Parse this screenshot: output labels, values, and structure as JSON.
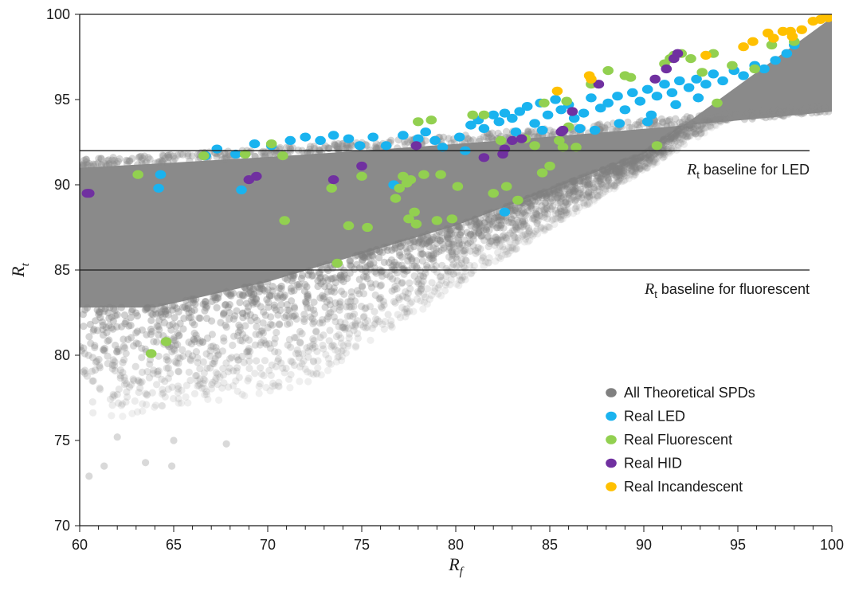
{
  "chart_data": {
    "type": "scatter",
    "title": "",
    "xlabel": {
      "main": "R",
      "sub": "f"
    },
    "ylabel": {
      "main": "R",
      "sub": "t"
    },
    "xlim": [
      60,
      100
    ],
    "ylim": [
      70,
      100
    ],
    "xticks": [
      60,
      65,
      70,
      75,
      80,
      85,
      90,
      95,
      100
    ],
    "yticks": [
      70,
      75,
      80,
      85,
      90,
      95,
      100
    ],
    "grid": false,
    "legend_position": "bottom-right",
    "reference_lines": [
      {
        "y": 92,
        "label_var": "R",
        "label_sub": "t",
        "label_text": " baseline for LED"
      },
      {
        "y": 85,
        "label_var": "R",
        "label_sub": "t",
        "label_text": " baseline for fluorescent"
      }
    ],
    "series": [
      {
        "name": "All Theoretical SPDs",
        "color": "#808080",
        "cloud": true,
        "points": [
          [
            60.5,
            72.9
          ],
          [
            61.3,
            73.5
          ],
          [
            63.5,
            73.7
          ],
          [
            64.9,
            73.5
          ],
          [
            67.8,
            74.8
          ],
          [
            62.0,
            75.2
          ],
          [
            65.0,
            75.0
          ]
        ]
      },
      {
        "name": "Real LED",
        "color": "#1ab3ef",
        "points": [
          [
            64.2,
            89.8
          ],
          [
            64.3,
            90.6
          ],
          [
            66.7,
            91.7
          ],
          [
            67.3,
            92.1
          ],
          [
            68.3,
            91.8
          ],
          [
            68.6,
            89.7
          ],
          [
            69.3,
            92.4
          ],
          [
            70.2,
            92.3
          ],
          [
            71.2,
            92.6
          ],
          [
            72.0,
            92.8
          ],
          [
            72.8,
            92.6
          ],
          [
            73.5,
            92.9
          ],
          [
            74.3,
            92.7
          ],
          [
            74.9,
            92.3
          ],
          [
            75.6,
            92.8
          ],
          [
            76.3,
            92.3
          ],
          [
            76.7,
            90.0
          ],
          [
            77.2,
            92.9
          ],
          [
            78.0,
            92.7
          ],
          [
            78.4,
            93.1
          ],
          [
            78.9,
            92.6
          ],
          [
            79.3,
            92.2
          ],
          [
            80.2,
            92.8
          ],
          [
            80.8,
            93.5
          ],
          [
            81.2,
            93.8
          ],
          [
            81.5,
            93.3
          ],
          [
            82.0,
            94.1
          ],
          [
            82.3,
            93.7
          ],
          [
            82.6,
            94.2
          ],
          [
            82.6,
            88.4
          ],
          [
            83.0,
            93.9
          ],
          [
            83.4,
            94.3
          ],
          [
            83.8,
            94.6
          ],
          [
            84.2,
            93.6
          ],
          [
            84.5,
            94.8
          ],
          [
            84.9,
            94.1
          ],
          [
            85.3,
            95.0
          ],
          [
            85.6,
            94.4
          ],
          [
            86.0,
            94.7
          ],
          [
            86.3,
            93.9
          ],
          [
            86.8,
            94.2
          ],
          [
            87.2,
            95.1
          ],
          [
            87.7,
            94.5
          ],
          [
            88.1,
            94.8
          ],
          [
            88.6,
            95.2
          ],
          [
            89.0,
            94.4
          ],
          [
            89.4,
            95.4
          ],
          [
            89.8,
            94.9
          ],
          [
            90.2,
            95.6
          ],
          [
            90.7,
            95.2
          ],
          [
            91.1,
            95.9
          ],
          [
            91.5,
            95.4
          ],
          [
            91.9,
            96.1
          ],
          [
            92.4,
            95.7
          ],
          [
            92.8,
            96.2
          ],
          [
            93.3,
            95.9
          ],
          [
            93.7,
            96.5
          ],
          [
            94.2,
            96.1
          ],
          [
            94.8,
            96.7
          ],
          [
            95.3,
            96.4
          ],
          [
            95.9,
            97.0
          ],
          [
            96.4,
            96.8
          ],
          [
            97.0,
            97.3
          ],
          [
            97.6,
            97.7
          ],
          [
            98.0,
            98.2
          ],
          [
            88.7,
            93.6
          ],
          [
            90.2,
            93.7
          ],
          [
            86.6,
            93.3
          ],
          [
            84.6,
            93.2
          ],
          [
            83.2,
            93.1
          ],
          [
            87.4,
            93.2
          ],
          [
            80.5,
            92.0
          ],
          [
            90.4,
            94.1
          ],
          [
            91.7,
            94.7
          ],
          [
            92.9,
            95.1
          ]
        ]
      },
      {
        "name": "Real Fluorescent",
        "color": "#92d050",
        "points": [
          [
            63.1,
            90.6
          ],
          [
            63.8,
            80.1
          ],
          [
            64.6,
            80.8
          ],
          [
            66.6,
            91.7
          ],
          [
            68.8,
            91.8
          ],
          [
            70.2,
            92.4
          ],
          [
            70.8,
            91.7
          ],
          [
            70.9,
            87.9
          ],
          [
            73.4,
            89.8
          ],
          [
            73.7,
            85.4
          ],
          [
            74.3,
            87.6
          ],
          [
            75.0,
            90.5
          ],
          [
            75.3,
            87.5
          ],
          [
            76.8,
            89.2
          ],
          [
            77.0,
            89.8
          ],
          [
            77.2,
            90.5
          ],
          [
            77.4,
            90.1
          ],
          [
            77.5,
            88.0
          ],
          [
            77.6,
            90.3
          ],
          [
            77.8,
            88.4
          ],
          [
            77.9,
            87.7
          ],
          [
            78.0,
            93.7
          ],
          [
            78.3,
            90.6
          ],
          [
            78.7,
            93.8
          ],
          [
            79.0,
            87.9
          ],
          [
            79.2,
            90.6
          ],
          [
            79.8,
            88.0
          ],
          [
            80.1,
            89.9
          ],
          [
            80.9,
            94.1
          ],
          [
            81.5,
            94.1
          ],
          [
            82.0,
            89.5
          ],
          [
            82.4,
            92.6
          ],
          [
            82.7,
            89.9
          ],
          [
            83.3,
            89.1
          ],
          [
            83.7,
            92.7
          ],
          [
            84.2,
            92.3
          ],
          [
            84.6,
            90.7
          ],
          [
            85.0,
            91.1
          ],
          [
            85.5,
            92.6
          ],
          [
            85.7,
            92.2
          ],
          [
            86.0,
            93.4
          ],
          [
            86.4,
            92.2
          ],
          [
            87.2,
            95.9
          ],
          [
            88.1,
            96.7
          ],
          [
            89.0,
            96.4
          ],
          [
            89.3,
            96.3
          ],
          [
            90.7,
            92.3
          ],
          [
            91.1,
            97.1
          ],
          [
            91.4,
            97.4
          ],
          [
            91.6,
            97.6
          ],
          [
            92.0,
            97.7
          ],
          [
            92.5,
            97.4
          ],
          [
            93.1,
            96.6
          ],
          [
            93.9,
            94.8
          ],
          [
            94.7,
            97.0
          ],
          [
            95.9,
            96.8
          ],
          [
            96.8,
            98.2
          ],
          [
            98.0,
            98.4
          ],
          [
            84.7,
            94.8
          ],
          [
            85.9,
            94.9
          ],
          [
            93.7,
            97.7
          ]
        ]
      },
      {
        "name": "Real HID",
        "color": "#7030a0",
        "points": [
          [
            60.4,
            89.5
          ],
          [
            60.5,
            89.5
          ],
          [
            69.0,
            90.3
          ],
          [
            69.4,
            90.5
          ],
          [
            73.5,
            90.3
          ],
          [
            75.0,
            91.1
          ],
          [
            77.9,
            92.3
          ],
          [
            81.5,
            91.6
          ],
          [
            82.6,
            92.1
          ],
          [
            83.0,
            92.6
          ],
          [
            83.5,
            92.7
          ],
          [
            85.6,
            93.1
          ],
          [
            85.7,
            93.2
          ],
          [
            86.2,
            94.3
          ],
          [
            87.6,
            95.9
          ],
          [
            90.6,
            96.2
          ],
          [
            91.2,
            96.8
          ],
          [
            91.6,
            97.4
          ],
          [
            91.8,
            97.7
          ],
          [
            82.5,
            91.8
          ]
        ]
      },
      {
        "name": "Real Incandescent",
        "color": "#ffc000",
        "points": [
          [
            85.4,
            95.5
          ],
          [
            87.1,
            96.4
          ],
          [
            87.2,
            96.2
          ],
          [
            93.3,
            97.6
          ],
          [
            95.3,
            98.1
          ],
          [
            96.9,
            98.6
          ],
          [
            97.4,
            99.0
          ],
          [
            97.9,
            98.7
          ],
          [
            98.4,
            99.1
          ],
          [
            99.0,
            99.6
          ],
          [
            99.4,
            99.7
          ],
          [
            99.7,
            99.9
          ],
          [
            99.8,
            99.8
          ],
          [
            100.0,
            100.0
          ],
          [
            97.8,
            99.0
          ],
          [
            96.6,
            98.9
          ],
          [
            95.8,
            98.4
          ]
        ]
      }
    ]
  }
}
